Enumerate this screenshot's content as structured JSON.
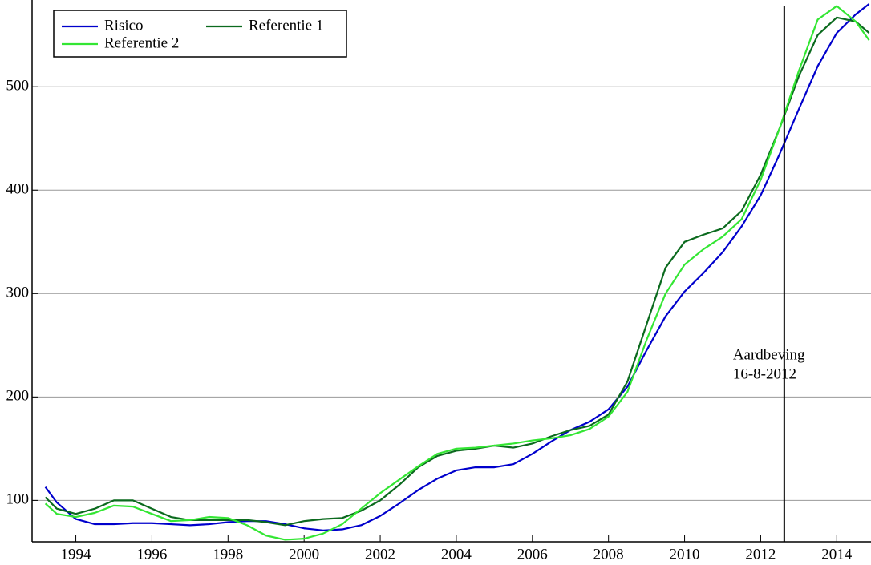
{
  "chart_data": {
    "type": "line",
    "x": [
      1993.2,
      1993.5,
      1994,
      1994.5,
      1995,
      1995.5,
      1996,
      1996.5,
      1997,
      1997.5,
      1998,
      1998.5,
      1999,
      1999.5,
      2000,
      2000.5,
      2001,
      2001.5,
      2002,
      2002.5,
      2003,
      2003.5,
      2004,
      2004.5,
      2005,
      2005.5,
      2006,
      2006.5,
      2007,
      2007.5,
      2008,
      2008.5,
      2009,
      2009.5,
      2010,
      2010.5,
      2011,
      2011.5,
      2012,
      2012.5,
      2013,
      2013.5,
      2014,
      2014.5,
      2014.85
    ],
    "series": [
      {
        "name": "Risico",
        "color": "#0000cc",
        "values": [
          113,
          98,
          82,
          77,
          77,
          78,
          78,
          77,
          76,
          77,
          79,
          80,
          80,
          77,
          73,
          71,
          72,
          76,
          85,
          97,
          110,
          121,
          129,
          132,
          132,
          135,
          145,
          157,
          168,
          176,
          188,
          210,
          245,
          278,
          302,
          320,
          340,
          365,
          395,
          435,
          478,
          520,
          552,
          570,
          580
        ]
      },
      {
        "name": "Referentie 1",
        "color": "#0b6a1e",
        "values": [
          103,
          92,
          87,
          92,
          100,
          100,
          92,
          84,
          81,
          81,
          81,
          81,
          79,
          76,
          80,
          82,
          83,
          90,
          100,
          115,
          132,
          143,
          148,
          150,
          153,
          151,
          155,
          162,
          168,
          172,
          183,
          215,
          270,
          325,
          350,
          357,
          363,
          380,
          415,
          460,
          510,
          550,
          567,
          563,
          552
        ]
      },
      {
        "name": "Referentie 2",
        "color": "#33e633",
        "values": [
          97,
          87,
          84,
          88,
          95,
          94,
          87,
          80,
          81,
          84,
          83,
          76,
          66,
          62,
          63,
          68,
          77,
          92,
          107,
          120,
          133,
          145,
          150,
          151,
          153,
          155,
          158,
          160,
          163,
          169,
          181,
          205,
          255,
          300,
          328,
          343,
          355,
          372,
          410,
          460,
          515,
          565,
          578,
          563,
          545
        ]
      }
    ],
    "xlim": [
      1992.85,
      2014.9
    ],
    "ylim": [
      60,
      580
    ],
    "xticks": [
      1994,
      1996,
      1998,
      2000,
      2002,
      2004,
      2006,
      2008,
      2010,
      2012,
      2014
    ],
    "yticks": [
      100,
      200,
      300,
      400,
      500
    ],
    "grid": true,
    "legend": "top-left",
    "annotation": {
      "x": 2012.62,
      "lines": [
        "Aardbeving",
        "16-8-2012"
      ]
    }
  }
}
